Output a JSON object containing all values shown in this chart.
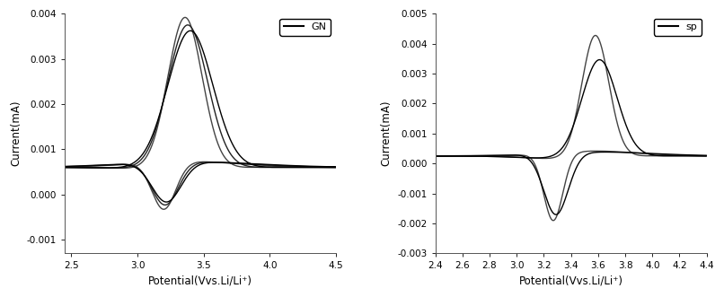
{
  "left": {
    "label": "GN",
    "xlim": [
      2.45,
      4.5
    ],
    "ylim": [
      -0.0013,
      0.004
    ],
    "xticks": [
      2.5,
      3.0,
      3.5,
      4.0,
      4.5
    ],
    "yticks": [
      -0.001,
      0.0,
      0.001,
      0.002,
      0.003,
      0.004
    ],
    "xlabel": "Potential(Vvs.Li/Li⁺)",
    "ylabel": "Current(mA)",
    "baseline": 0.0006,
    "curves": [
      {
        "anodic_peak_v": 3.36,
        "anodic_peak_i": 0.00335,
        "cathodic_peak_v": 3.2,
        "cathodic_peak_i": -0.00105,
        "wa": 0.13,
        "wc": 0.09,
        "color": "#444444",
        "lw": 1.0
      },
      {
        "anodic_peak_v": 3.38,
        "anodic_peak_i": 0.00318,
        "cathodic_peak_v": 3.21,
        "cathodic_peak_i": -0.00095,
        "wa": 0.15,
        "wc": 0.1,
        "color": "#222222",
        "lw": 1.0
      },
      {
        "anodic_peak_v": 3.4,
        "anodic_peak_i": 0.00305,
        "cathodic_peak_v": 3.22,
        "cathodic_peak_i": -0.00088,
        "wa": 0.17,
        "wc": 0.11,
        "color": "#000000",
        "lw": 1.0
      }
    ]
  },
  "right": {
    "label": "sp",
    "xlim": [
      2.4,
      4.4
    ],
    "ylim": [
      -0.003,
      0.005
    ],
    "xticks": [
      2.4,
      2.6,
      2.8,
      3.0,
      3.2,
      3.4,
      3.6,
      3.8,
      4.0,
      4.2,
      4.4
    ],
    "yticks": [
      -0.003,
      -0.002,
      -0.001,
      0.0,
      0.001,
      0.002,
      0.003,
      0.004,
      0.005
    ],
    "xlabel": "Potential(Vvs.Li/Li⁺)",
    "ylabel": "Current(mA)",
    "baseline": 0.00025,
    "curves": [
      {
        "anodic_peak_v": 3.58,
        "anodic_peak_i": 0.00405,
        "cathodic_peak_v": 3.27,
        "cathodic_peak_i": -0.00225,
        "wa": 0.1,
        "wc": 0.07,
        "color": "#444444",
        "lw": 1.0
      },
      {
        "anodic_peak_v": 3.61,
        "anodic_peak_i": 0.00325,
        "cathodic_peak_v": 3.29,
        "cathodic_peak_i": -0.00205,
        "wa": 0.13,
        "wc": 0.09,
        "color": "#000000",
        "lw": 1.0
      }
    ]
  },
  "bg_color": "#ffffff",
  "legend_fontsize": 8,
  "tick_fontsize": 7.5,
  "label_fontsize": 8.5
}
